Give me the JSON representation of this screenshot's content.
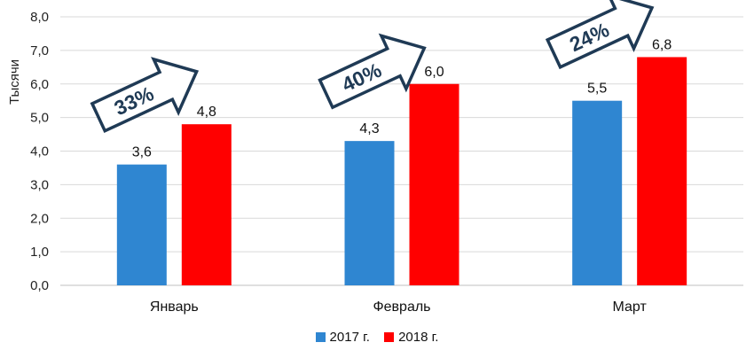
{
  "chart_data": {
    "type": "bar",
    "title": "",
    "xlabel": "",
    "ylabel": "Тысячи",
    "ylim": [
      0,
      8
    ],
    "yticks": [
      "0,0",
      "1,0",
      "2,0",
      "3,0",
      "4,0",
      "5,0",
      "6,0",
      "7,0",
      "8,0"
    ],
    "categories": [
      "Январь",
      "Февраль",
      "Март"
    ],
    "series": [
      {
        "name": "2017 г.",
        "color": "#2f86d1",
        "values": [
          3.6,
          4.3,
          5.5
        ],
        "labels": [
          "3,6",
          "4,3",
          "5,5"
        ]
      },
      {
        "name": "2018 г.",
        "color": "#ff0000",
        "values": [
          4.8,
          6.0,
          6.8
        ],
        "labels": [
          "4,8",
          "6,0",
          "6,8"
        ]
      }
    ],
    "annotations": [
      "33%",
      "40%",
      "24%"
    ],
    "grid": true,
    "legend_position": "bottom"
  }
}
